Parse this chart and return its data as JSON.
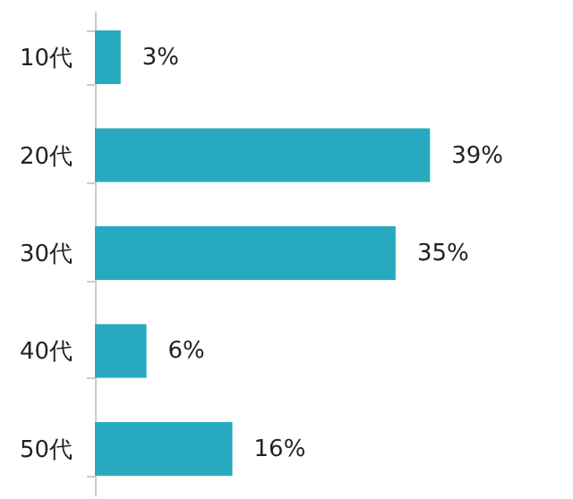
{
  "chart_data": {
    "type": "bar",
    "orientation": "horizontal",
    "categories": [
      "10代",
      "20代",
      "30代",
      "40代",
      "50代"
    ],
    "values": [
      3,
      39,
      35,
      6,
      16
    ],
    "value_labels": [
      "3%",
      "39%",
      "35%",
      "6%",
      "16%"
    ],
    "color": "#27aabf",
    "grid": false
  }
}
